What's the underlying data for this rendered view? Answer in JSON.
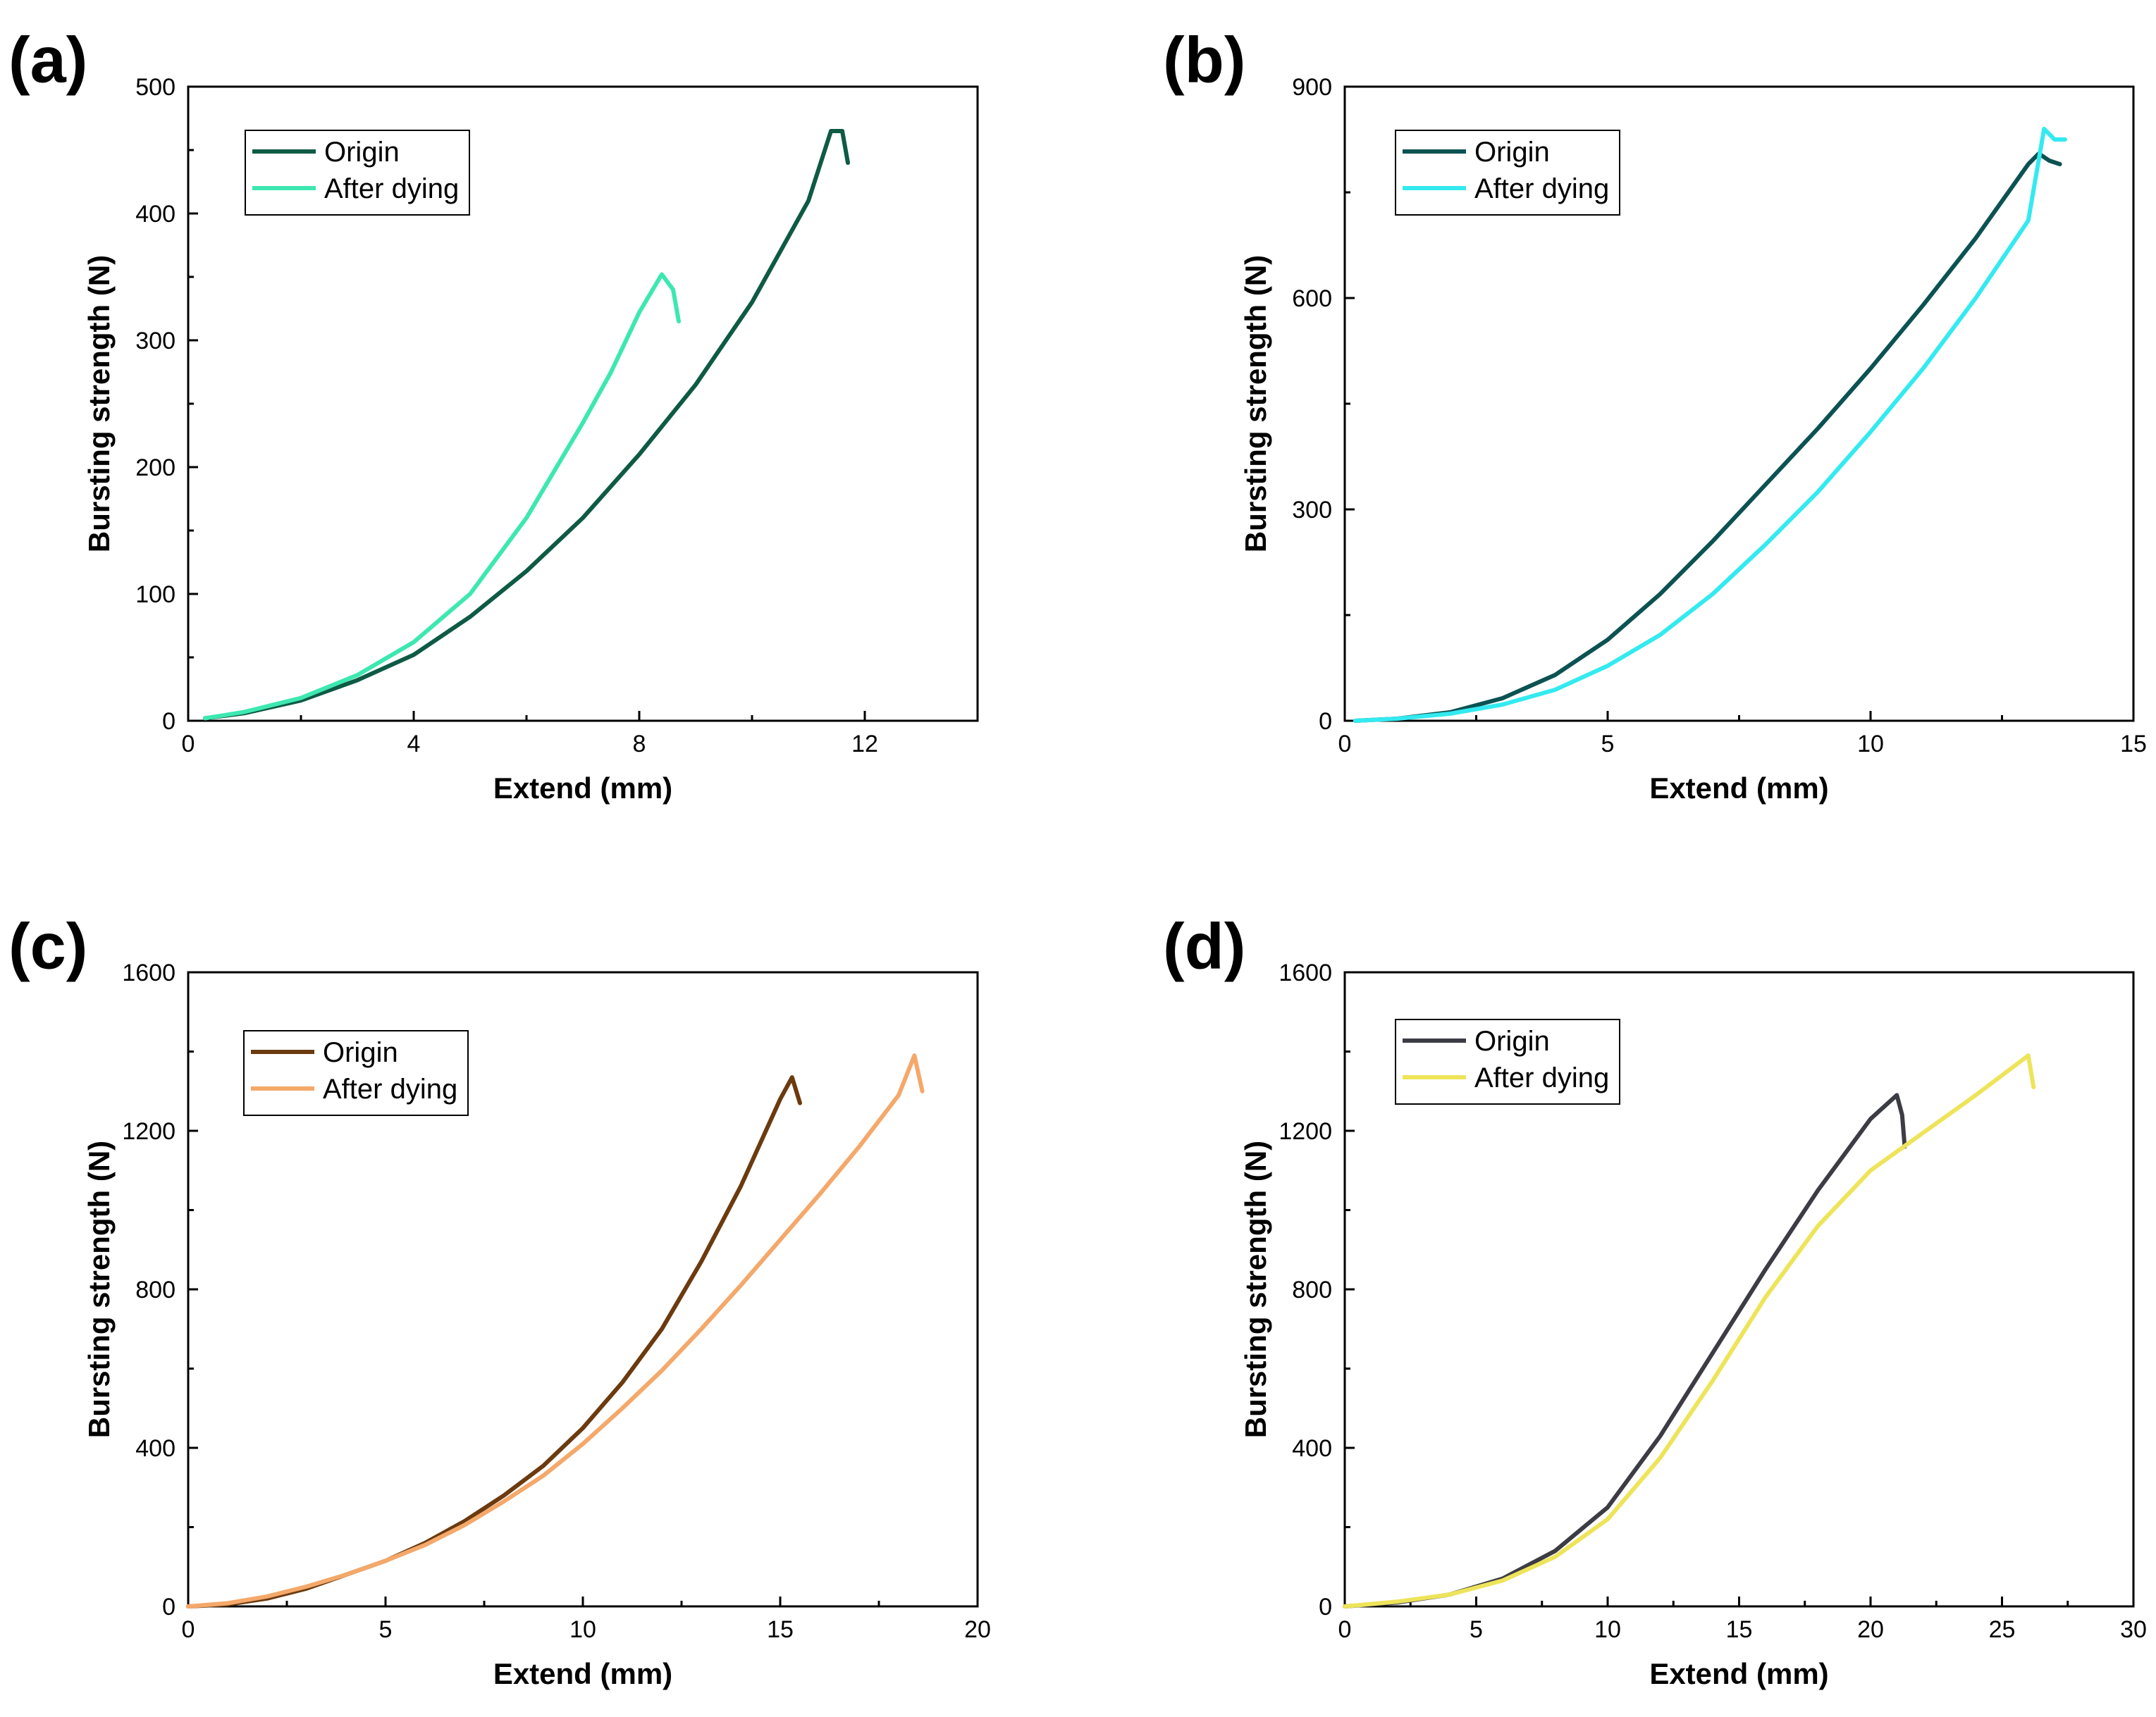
{
  "chart_data": [
    {
      "panel_label": "(a)",
      "type": "line",
      "xlabel": "Extend (mm)",
      "ylabel": "Bursting strength (N)",
      "xlim": [
        0,
        14
      ],
      "ylim": [
        0,
        500
      ],
      "xticks": [
        0,
        4,
        8,
        12
      ],
      "yticks": [
        0,
        100,
        200,
        300,
        400,
        500
      ],
      "legend_position": "top-left",
      "series": [
        {
          "name": "Origin",
          "color": "#0e5a45",
          "x": [
            0.3,
            1.0,
            2.0,
            3.0,
            4.0,
            5.0,
            6.0,
            7.0,
            8.0,
            9.0,
            10.0,
            11.0,
            11.4,
            11.6,
            11.7
          ],
          "y": [
            2,
            6,
            16,
            32,
            52,
            82,
            118,
            160,
            210,
            265,
            330,
            410,
            465,
            465,
            440
          ]
        },
        {
          "name": "After dying",
          "color": "#3de8b0",
          "x": [
            0.3,
            1.0,
            2.0,
            3.0,
            4.0,
            5.0,
            6.0,
            7.0,
            7.5,
            8.0,
            8.4,
            8.6,
            8.7
          ],
          "y": [
            2,
            7,
            18,
            36,
            62,
            100,
            160,
            235,
            275,
            322,
            352,
            340,
            315
          ]
        }
      ]
    },
    {
      "panel_label": "(b)",
      "type": "line",
      "xlabel": "Extend (mm)",
      "ylabel": "Bursting strength (N)",
      "xlim": [
        0,
        15
      ],
      "ylim": [
        0,
        900
      ],
      "xticks": [
        0,
        5,
        10,
        15
      ],
      "yticks": [
        0,
        300,
        600,
        900
      ],
      "legend_position": "top-left",
      "series": [
        {
          "name": "Origin",
          "color": "#0c5252",
          "x": [
            0.2,
            1.0,
            2.0,
            3.0,
            4.0,
            5.0,
            6.0,
            7.0,
            8.0,
            9.0,
            10.0,
            11.0,
            12.0,
            13.0,
            13.2,
            13.4,
            13.6
          ],
          "y": [
            0,
            3,
            12,
            32,
            65,
            115,
            180,
            255,
            335,
            415,
            500,
            590,
            685,
            790,
            805,
            795,
            790
          ]
        },
        {
          "name": "After dying",
          "color": "#33eaf0",
          "x": [
            0.2,
            1.0,
            2.0,
            3.0,
            4.0,
            5.0,
            6.0,
            7.0,
            8.0,
            9.0,
            10.0,
            11.0,
            12.0,
            13.0,
            13.3,
            13.5,
            13.7
          ],
          "y": [
            0,
            3,
            10,
            23,
            44,
            78,
            122,
            180,
            250,
            325,
            410,
            500,
            600,
            710,
            840,
            825,
            825
          ]
        }
      ]
    },
    {
      "panel_label": "(c)",
      "type": "line",
      "xlabel": "Extend (mm)",
      "ylabel": "Bursting strength (N)",
      "xlim": [
        0,
        20
      ],
      "ylim": [
        0,
        1600
      ],
      "xticks": [
        0,
        5,
        10,
        15,
        20
      ],
      "yticks": [
        0,
        400,
        800,
        1200,
        1600
      ],
      "legend_position": "top-left",
      "series": [
        {
          "name": "Origin",
          "color": "#6b3a0e",
          "x": [
            0,
            1.0,
            2.0,
            3.0,
            4.0,
            5.0,
            6.0,
            7.0,
            8.0,
            9.0,
            10.0,
            11.0,
            12.0,
            13.0,
            14.0,
            15.0,
            15.3,
            15.5
          ],
          "y": [
            0,
            5,
            20,
            45,
            80,
            115,
            160,
            215,
            280,
            355,
            450,
            565,
            700,
            870,
            1060,
            1280,
            1335,
            1270
          ]
        },
        {
          "name": "After dying",
          "color": "#f4a86a",
          "x": [
            0,
            1.0,
            2.0,
            3.0,
            4.0,
            5.0,
            6.0,
            7.0,
            8.0,
            9.0,
            10.0,
            11.0,
            12.0,
            13.0,
            14.0,
            15.0,
            16.0,
            17.0,
            18.0,
            18.4,
            18.6
          ],
          "y": [
            0,
            8,
            25,
            50,
            80,
            115,
            155,
            205,
            265,
            330,
            410,
            500,
            595,
            700,
            810,
            925,
            1040,
            1160,
            1290,
            1390,
            1300
          ]
        }
      ]
    },
    {
      "panel_label": "(d)",
      "type": "line",
      "xlabel": "Extend (mm)",
      "ylabel": "Bursting strength (N)",
      "xlim": [
        0,
        30
      ],
      "ylim": [
        0,
        1600
      ],
      "xticks": [
        0,
        5,
        10,
        15,
        20,
        25,
        30
      ],
      "yticks": [
        0,
        400,
        800,
        1200,
        1600
      ],
      "legend_position": "top-left",
      "series": [
        {
          "name": "Origin",
          "color": "#3c3c44",
          "x": [
            0,
            2.0,
            4.0,
            6.0,
            8.0,
            10.0,
            12.0,
            14.0,
            16.0,
            18.0,
            20.0,
            21.0,
            21.2,
            21.3
          ],
          "y": [
            0,
            10,
            30,
            70,
            140,
            250,
            430,
            640,
            850,
            1050,
            1230,
            1290,
            1240,
            1160
          ]
        },
        {
          "name": "After dying",
          "color": "#eee45a",
          "x": [
            0,
            2.0,
            4.0,
            6.0,
            8.0,
            10.0,
            12.0,
            14.0,
            16.0,
            18.0,
            20.0,
            22.0,
            24.0,
            25.0,
            26.0,
            26.2
          ],
          "y": [
            0,
            12,
            30,
            65,
            125,
            220,
            375,
            570,
            780,
            960,
            1100,
            1195,
            1290,
            1340,
            1390,
            1310
          ]
        }
      ]
    }
  ]
}
